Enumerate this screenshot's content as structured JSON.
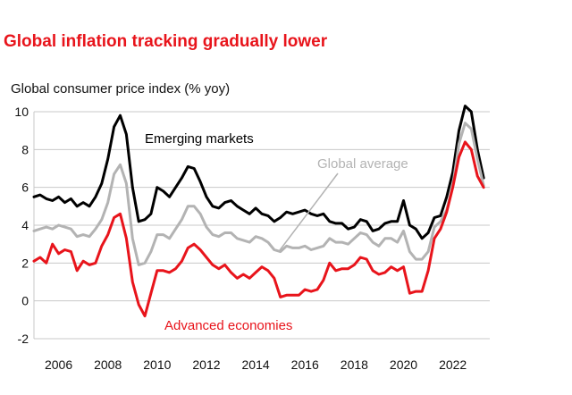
{
  "title": "Global inflation tracking gradually lower",
  "subtitle": "Global consumer price index (% yoy)",
  "colors": {
    "title": "#e8141b",
    "grid": "#c8c8c8",
    "emerging": "#000000",
    "global": "#b3b3b3",
    "advanced": "#e8141b"
  },
  "chart_data": {
    "type": "line",
    "title": "Global inflation tracking gradually lower",
    "ylabel": "Global consumer price index (% yoy)",
    "xlim": [
      2005,
      2023.5
    ],
    "ylim": [
      -2,
      10
    ],
    "grid": true,
    "xticks": [
      "2006",
      "2008",
      "2010",
      "2012",
      "2014",
      "2016",
      "2018",
      "2020",
      "2022"
    ],
    "yticks": [
      "10",
      "8",
      "6",
      "4",
      "2",
      "0",
      "-2"
    ],
    "series": [
      {
        "name": "Emerging markets",
        "color": "#000000",
        "x": [
          2005.0,
          2005.25,
          2005.5,
          2005.75,
          2006.0,
          2006.25,
          2006.5,
          2006.75,
          2007.0,
          2007.25,
          2007.5,
          2007.75,
          2008.0,
          2008.25,
          2008.5,
          2008.75,
          2009.0,
          2009.25,
          2009.5,
          2009.75,
          2010.0,
          2010.25,
          2010.5,
          2010.75,
          2011.0,
          2011.25,
          2011.5,
          2011.75,
          2012.0,
          2012.25,
          2012.5,
          2012.75,
          2013.0,
          2013.25,
          2013.5,
          2013.75,
          2014.0,
          2014.25,
          2014.5,
          2014.75,
          2015.0,
          2015.25,
          2015.5,
          2015.75,
          2016.0,
          2016.25,
          2016.5,
          2016.75,
          2017.0,
          2017.25,
          2017.5,
          2017.75,
          2018.0,
          2018.25,
          2018.5,
          2018.75,
          2019.0,
          2019.25,
          2019.5,
          2019.75,
          2020.0,
          2020.25,
          2020.5,
          2020.75,
          2021.0,
          2021.25,
          2021.5,
          2021.75,
          2022.0,
          2022.25,
          2022.5,
          2022.75,
          2023.0,
          2023.25
        ],
        "y": [
          5.5,
          5.6,
          5.4,
          5.3,
          5.5,
          5.2,
          5.4,
          5.0,
          5.2,
          5.0,
          5.5,
          6.2,
          7.5,
          9.2,
          9.8,
          8.8,
          6.0,
          4.2,
          4.3,
          4.6,
          6.0,
          5.8,
          5.5,
          6.0,
          6.5,
          7.1,
          7.0,
          6.3,
          5.5,
          5.0,
          4.9,
          5.2,
          5.3,
          5.0,
          4.8,
          4.6,
          4.9,
          4.6,
          4.5,
          4.2,
          4.4,
          4.7,
          4.6,
          4.7,
          4.8,
          4.6,
          4.5,
          4.6,
          4.2,
          4.1,
          4.1,
          3.8,
          3.9,
          4.3,
          4.2,
          3.7,
          3.8,
          4.1,
          4.2,
          4.2,
          5.3,
          4.0,
          3.8,
          3.3,
          3.6,
          4.4,
          4.5,
          5.5,
          6.8,
          9.0,
          10.3,
          10.0,
          8.0,
          6.5
        ]
      },
      {
        "name": "Global average",
        "color": "#b3b3b3",
        "x": [
          2005.0,
          2005.25,
          2005.5,
          2005.75,
          2006.0,
          2006.25,
          2006.5,
          2006.75,
          2007.0,
          2007.25,
          2007.5,
          2007.75,
          2008.0,
          2008.25,
          2008.5,
          2008.75,
          2009.0,
          2009.25,
          2009.5,
          2009.75,
          2010.0,
          2010.25,
          2010.5,
          2010.75,
          2011.0,
          2011.25,
          2011.5,
          2011.75,
          2012.0,
          2012.25,
          2012.5,
          2012.75,
          2013.0,
          2013.25,
          2013.5,
          2013.75,
          2014.0,
          2014.25,
          2014.5,
          2014.75,
          2015.0,
          2015.25,
          2015.5,
          2015.75,
          2016.0,
          2016.25,
          2016.5,
          2016.75,
          2017.0,
          2017.25,
          2017.5,
          2017.75,
          2018.0,
          2018.25,
          2018.5,
          2018.75,
          2019.0,
          2019.25,
          2019.5,
          2019.75,
          2020.0,
          2020.25,
          2020.5,
          2020.75,
          2021.0,
          2021.25,
          2021.5,
          2021.75,
          2022.0,
          2022.25,
          2022.5,
          2022.75,
          2023.0,
          2023.25
        ],
        "y": [
          3.7,
          3.8,
          3.9,
          3.8,
          4.0,
          3.9,
          3.8,
          3.4,
          3.5,
          3.4,
          3.8,
          4.3,
          5.2,
          6.7,
          7.2,
          6.2,
          3.3,
          1.9,
          2.0,
          2.6,
          3.5,
          3.5,
          3.3,
          3.8,
          4.3,
          5.0,
          5.0,
          4.6,
          3.9,
          3.5,
          3.4,
          3.6,
          3.6,
          3.3,
          3.2,
          3.1,
          3.4,
          3.3,
          3.1,
          2.7,
          2.6,
          2.9,
          2.8,
          2.8,
          2.9,
          2.7,
          2.8,
          2.9,
          3.3,
          3.1,
          3.1,
          3.0,
          3.3,
          3.6,
          3.5,
          3.1,
          2.9,
          3.3,
          3.3,
          3.1,
          3.7,
          2.6,
          2.2,
          2.2,
          2.6,
          3.9,
          4.2,
          4.8,
          6.1,
          8.3,
          9.4,
          9.1,
          7.5,
          6.1
        ]
      },
      {
        "name": "Advanced economies",
        "color": "#e8141b",
        "x": [
          2005.0,
          2005.25,
          2005.5,
          2005.75,
          2006.0,
          2006.25,
          2006.5,
          2006.75,
          2007.0,
          2007.25,
          2007.5,
          2007.75,
          2008.0,
          2008.25,
          2008.5,
          2008.75,
          2009.0,
          2009.25,
          2009.5,
          2009.75,
          2010.0,
          2010.25,
          2010.5,
          2010.75,
          2011.0,
          2011.25,
          2011.5,
          2011.75,
          2012.0,
          2012.25,
          2012.5,
          2012.75,
          2013.0,
          2013.25,
          2013.5,
          2013.75,
          2014.0,
          2014.25,
          2014.5,
          2014.75,
          2015.0,
          2015.25,
          2015.5,
          2015.75,
          2016.0,
          2016.25,
          2016.5,
          2016.75,
          2017.0,
          2017.25,
          2017.5,
          2017.75,
          2018.0,
          2018.25,
          2018.5,
          2018.75,
          2019.0,
          2019.25,
          2019.5,
          2019.75,
          2020.0,
          2020.25,
          2020.5,
          2020.75,
          2021.0,
          2021.25,
          2021.5,
          2021.75,
          2022.0,
          2022.25,
          2022.5,
          2022.75,
          2023.0,
          2023.25
        ],
        "y": [
          2.1,
          2.3,
          2.0,
          3.0,
          2.5,
          2.7,
          2.6,
          1.6,
          2.1,
          1.9,
          2.0,
          2.9,
          3.5,
          4.4,
          4.6,
          3.3,
          1.0,
          -0.2,
          -0.8,
          0.4,
          1.6,
          1.6,
          1.5,
          1.7,
          2.1,
          2.8,
          3.0,
          2.7,
          2.3,
          1.9,
          1.7,
          1.9,
          1.5,
          1.2,
          1.4,
          1.2,
          1.5,
          1.8,
          1.6,
          1.2,
          0.2,
          0.3,
          0.3,
          0.3,
          0.6,
          0.5,
          0.6,
          1.1,
          2.0,
          1.6,
          1.7,
          1.7,
          1.9,
          2.3,
          2.2,
          1.6,
          1.4,
          1.5,
          1.8,
          1.6,
          1.8,
          0.4,
          0.5,
          0.5,
          1.6,
          3.3,
          3.8,
          4.7,
          6.0,
          7.6,
          8.4,
          8.0,
          6.6,
          6.0
        ]
      }
    ],
    "annotations": [
      {
        "text": "Emerging markets",
        "color": "#000000"
      },
      {
        "text": "Global average",
        "color": "#b3b3b3"
      },
      {
        "text": "Advanced economies",
        "color": "#e8141b"
      }
    ]
  }
}
